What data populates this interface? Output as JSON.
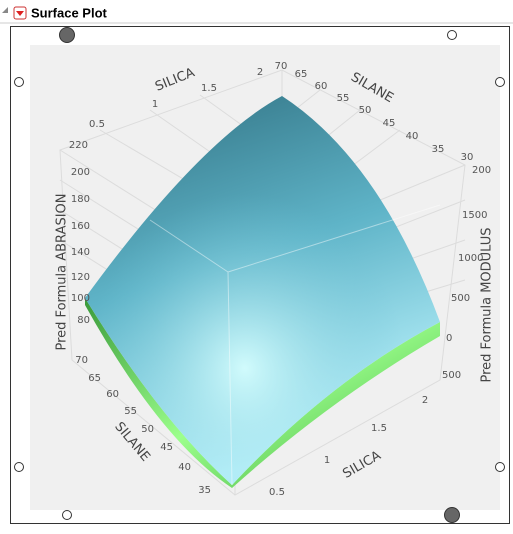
{
  "header": {
    "title": "Surface Plot"
  },
  "axes": {
    "silica_top": {
      "label": "SILICA",
      "ticks": [
        "0.5",
        "1",
        "1.5",
        "2"
      ]
    },
    "silane_top": {
      "label": "SILANE",
      "ticks": [
        "70",
        "65",
        "60",
        "55",
        "50",
        "45",
        "40",
        "35",
        "30"
      ]
    },
    "abrasion": {
      "label": "Pred Formula ABRASION",
      "ticks": [
        "220",
        "200",
        "180",
        "160",
        "140",
        "120",
        "100",
        "80"
      ]
    },
    "modulus": {
      "label": "Pred Formula MODULUS",
      "ticks": [
        "200",
        "1500",
        "1000",
        "500",
        "0",
        "500"
      ]
    },
    "silane_bottom": {
      "label": "SILANE",
      "ticks": [
        "70",
        "65",
        "60",
        "55",
        "50",
        "45",
        "40",
        "35"
      ]
    },
    "silica_bottom": {
      "label": "SILICA",
      "ticks": [
        "0.5",
        "1",
        "1.5",
        "2"
      ]
    }
  }
}
